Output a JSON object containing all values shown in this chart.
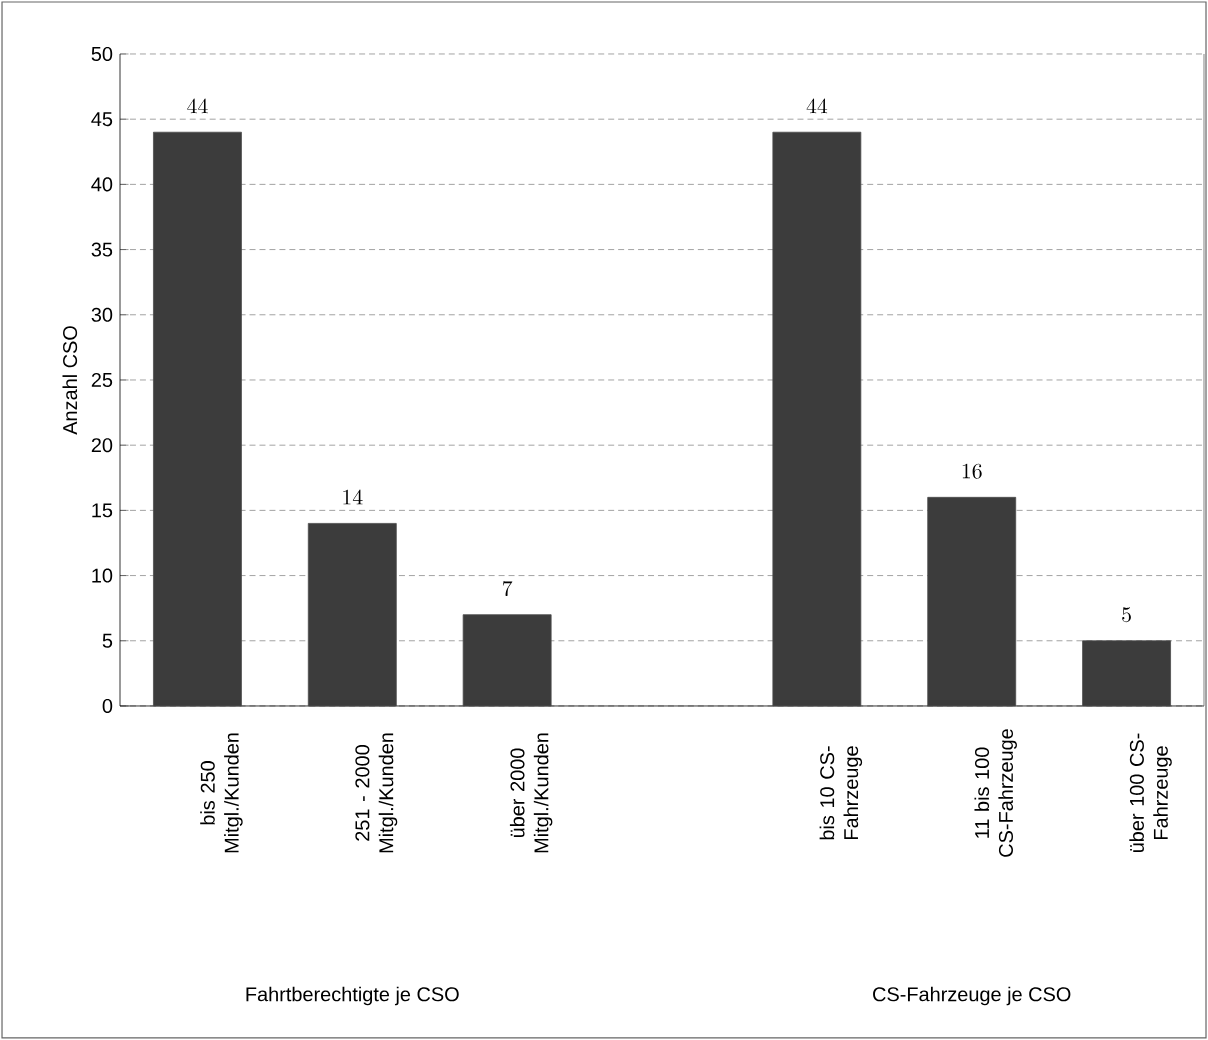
{
  "chart_data": {
    "type": "bar",
    "ylabel": "Anzahl CSO",
    "categories": [
      "bis 250 Mitgl./Kunden",
      "251 - 2000 Mitgl./Kunden",
      "über 2000 Mitgl./Kunden",
      null,
      "bis 10 CS-Fahrzeuge",
      "11 bis 100 CS-Fahrzeuge",
      "über 100 CS-Fahrzeuge"
    ],
    "values": [
      44,
      14,
      7,
      null,
      44,
      16,
      5
    ],
    "color": "#3c3c3c",
    "ylim": [
      0,
      50
    ],
    "yticks": [
      0,
      5,
      10,
      15,
      20,
      25,
      30,
      35,
      40,
      45,
      50
    ],
    "grid": "y",
    "data_labels": true,
    "annotations": [
      "Fahrtberechtigte je CSO",
      "CS-Fahrzeuge je CSO"
    ]
  }
}
